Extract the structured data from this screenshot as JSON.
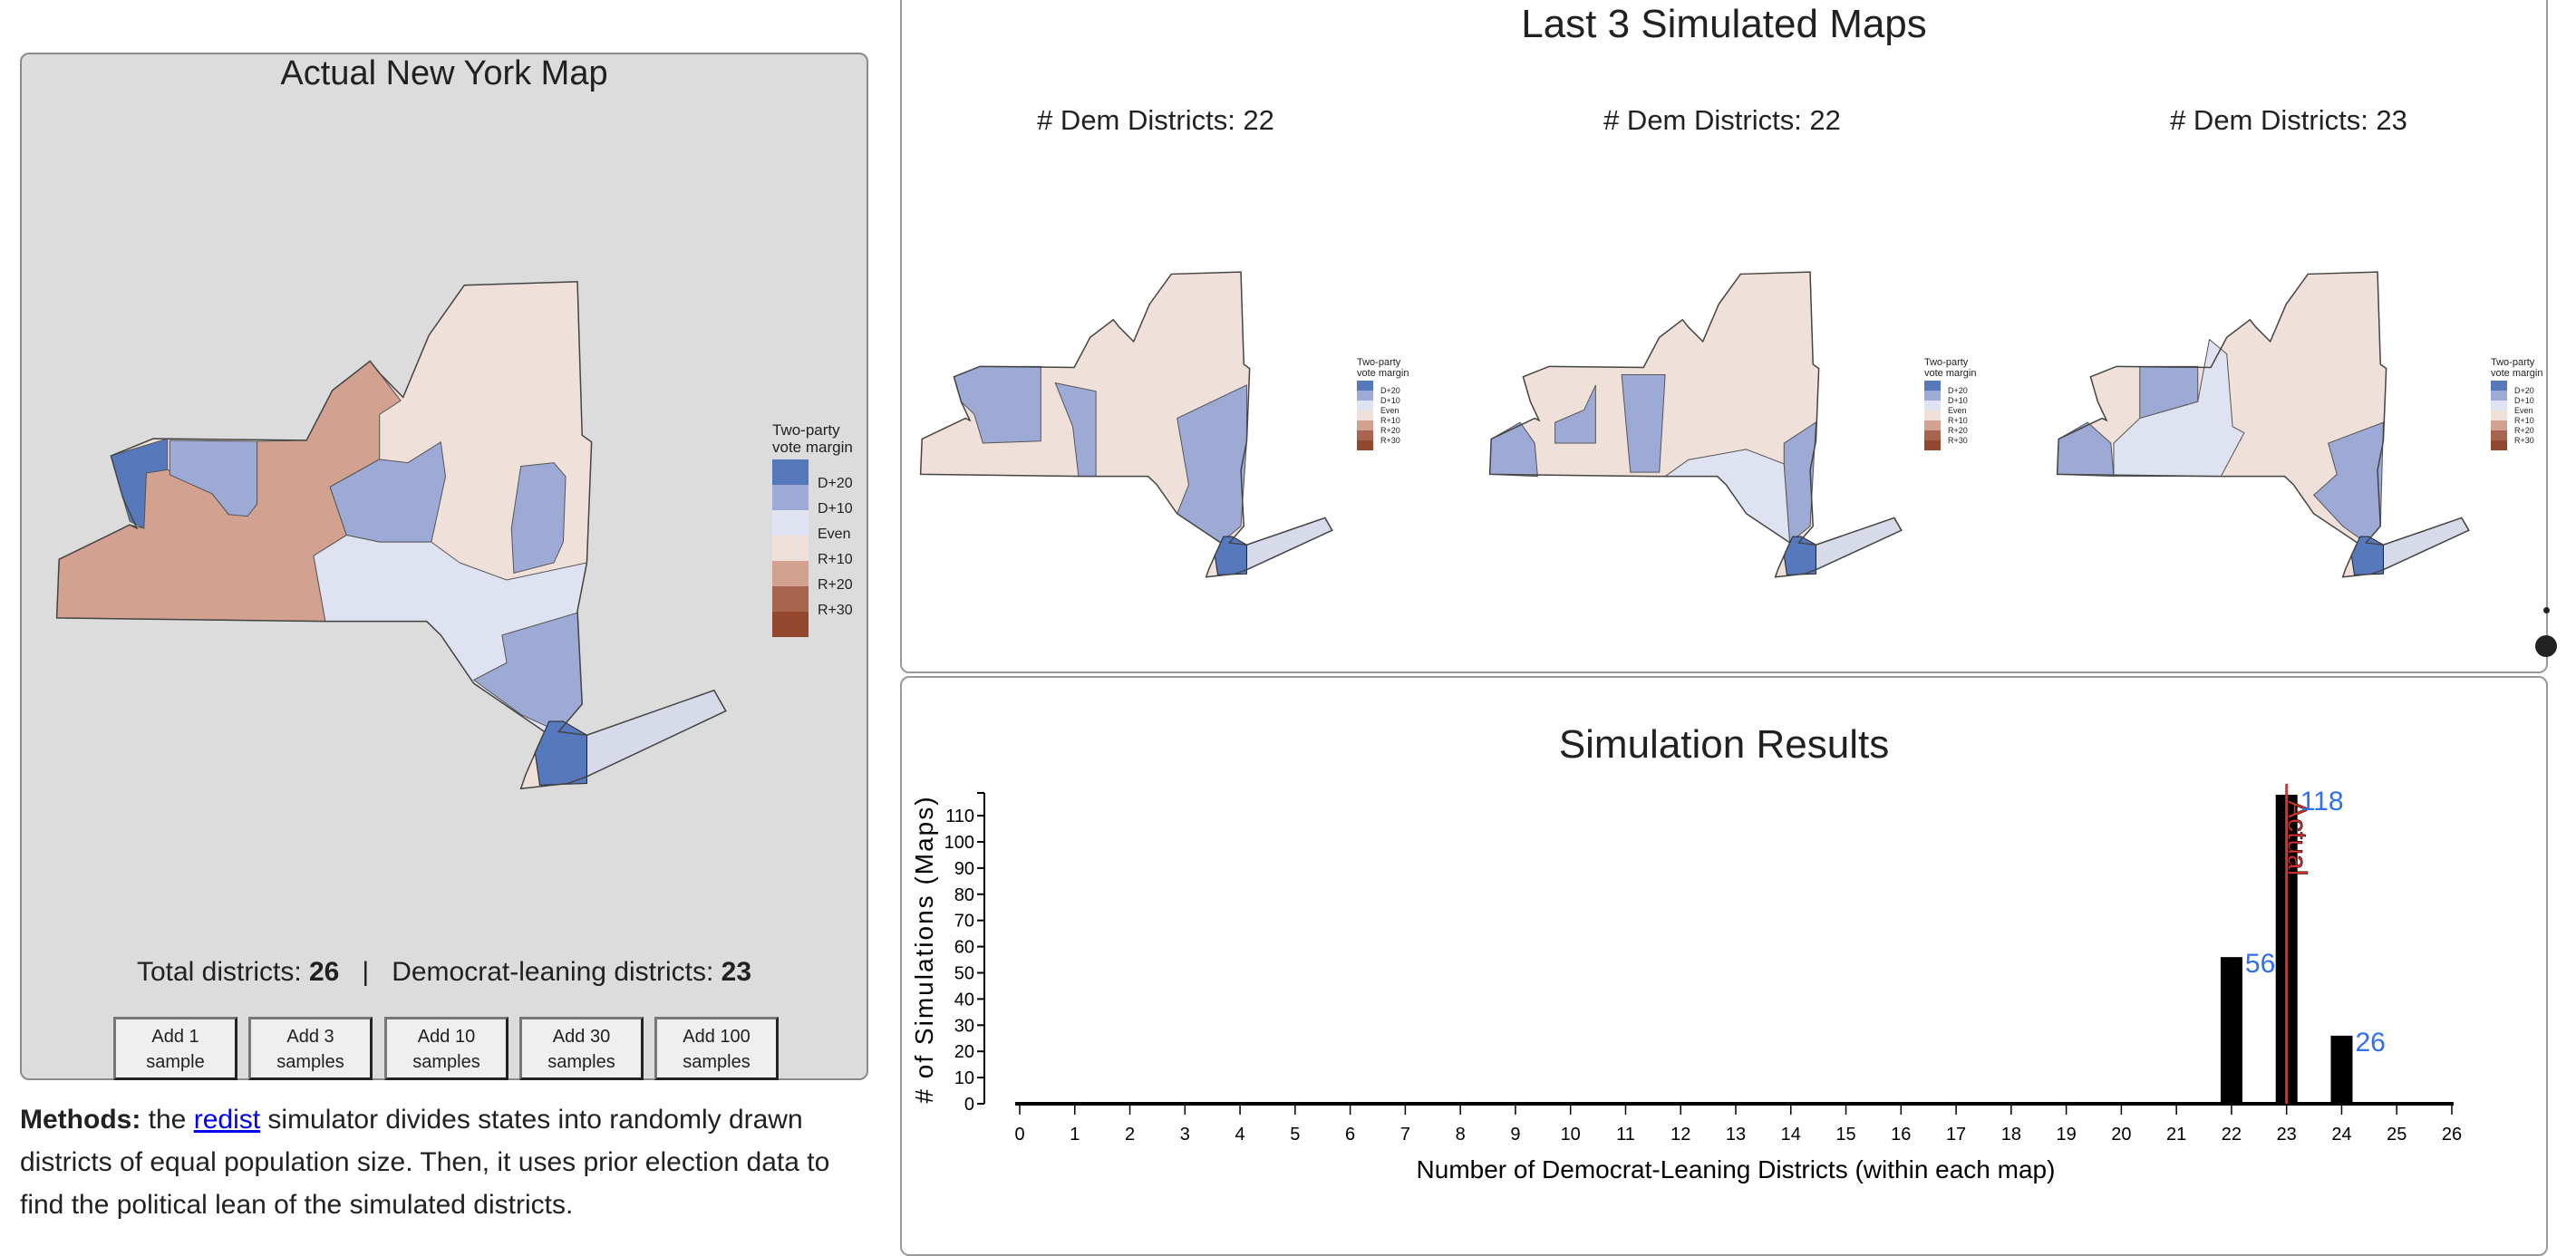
{
  "actual": {
    "title": "Actual New York Map",
    "total_label": "Total districts:",
    "total_value": "26",
    "separator": "|",
    "dem_label": "Democrat-leaning districts:",
    "dem_value": "23"
  },
  "legend": {
    "title_line1": "Two-party",
    "title_line2": "vote margin",
    "labels": [
      "D+20",
      "D+10",
      "Even",
      "R+10",
      "R+20",
      "R+30"
    ],
    "colors": [
      "#5679bd",
      "#9eaad6",
      "#dfe2f0",
      "#efe0da",
      "#d3a190",
      "#a9644f",
      "#93472f"
    ]
  },
  "buttons": [
    {
      "line1": "Add 1",
      "line2": "sample"
    },
    {
      "line1": "Add 3",
      "line2": "samples"
    },
    {
      "line1": "Add 10",
      "line2": "samples"
    },
    {
      "line1": "Add 30",
      "line2": "samples"
    },
    {
      "line1": "Add 100",
      "line2": "samples"
    }
  ],
  "methods": {
    "label": "Methods:",
    "pre": " the ",
    "link": "redist",
    "post": " simulator divides states into randomly drawn districts of equal population size. Then, it uses prior election data to find the political lean of the simulated districts."
  },
  "simulated": {
    "title": "Last 3 Simulated Maps",
    "maps": [
      {
        "label": "# Dem Districts: 22"
      },
      {
        "label": "# Dem Districts: 22"
      },
      {
        "label": "# Dem Districts: 23"
      }
    ]
  },
  "results": {
    "title": "Simulation Results"
  },
  "chart_data": {
    "type": "bar",
    "title": "Simulation Results",
    "xlabel": "Number of Democrat-Leaning Districts (within each map)",
    "ylabel": "# of Simulations (Maps)",
    "categories": [
      0,
      1,
      2,
      3,
      4,
      5,
      6,
      7,
      8,
      9,
      10,
      11,
      12,
      13,
      14,
      15,
      16,
      17,
      18,
      19,
      20,
      21,
      22,
      23,
      24,
      25,
      26
    ],
    "values": [
      0,
      0,
      0,
      0,
      0,
      0,
      0,
      0,
      0,
      0,
      0,
      0,
      0,
      0,
      0,
      0,
      0,
      0,
      0,
      0,
      0,
      0,
      56,
      118,
      26,
      0,
      0
    ],
    "data_labels": {
      "22": "56",
      "23": "118",
      "24": "26"
    },
    "yticks": [
      0,
      10,
      20,
      30,
      40,
      50,
      60,
      70,
      80,
      90,
      100,
      110
    ],
    "ylim": [
      0,
      118
    ],
    "xlim": [
      0,
      26
    ],
    "actual_line": {
      "x": 23,
      "label": "Actual",
      "color": "#e0302a"
    },
    "bar_color": "#000000",
    "label_color": "#2f6ff0",
    "grid": false
  }
}
